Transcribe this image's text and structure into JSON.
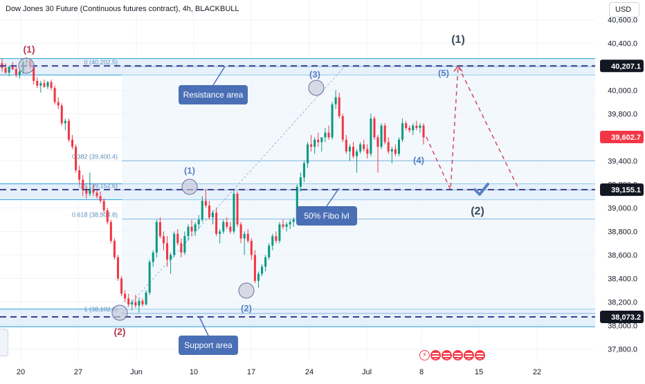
{
  "header": {
    "title": "Dow Jones 30 Future (Continuous futures contract), 4h, BLACKBULL",
    "currency_button": "USD"
  },
  "colors": {
    "up": "#089981",
    "down": "#f23645",
    "zone_fill": "#cfe4f7",
    "zone_line": "#2a9fd6",
    "dash_line": "#3b3d8c",
    "fib_line": "#7fb6de",
    "label_blue": "#5b7fc4",
    "wave_red": "#b83a50",
    "callout": "#4a6fb5",
    "price_tag": "#131722"
  },
  "chart_data": {
    "type": "candlestick",
    "title": "Dow Jones 30 Future (Continuous futures contract), 4h, BLACKBULL",
    "y_axis": {
      "ticks": [
        "40,600.0",
        "40,400.0",
        "40,200.0",
        "40,000.0",
        "39,800.0",
        "39,600.0",
        "39,400.0",
        "39,200.0",
        "39,000.0",
        "38,800.0",
        "38,600.0",
        "38,400.0",
        "38,200.0",
        "38,000.0",
        "37,800.0"
      ],
      "range": [
        37700,
        40680
      ]
    },
    "x_axis": {
      "ticks": [
        "20",
        "27",
        "Jun",
        "10",
        "17",
        "24",
        "Jul",
        "8",
        "15",
        "22"
      ]
    },
    "price_tags": [
      {
        "label": "40,207.1",
        "value": 40207.1,
        "style": "dark"
      },
      {
        "label": "39,602.7",
        "value": 39602.7,
        "style": "red"
      },
      {
        "label": "39,155.1",
        "value": 39155.1,
        "style": "dark"
      },
      {
        "label": "38,073.2",
        "value": 38073.2,
        "style": "dark"
      }
    ],
    "zones": [
      {
        "name": "Resistance area",
        "top": 40270,
        "bottom": 40130
      },
      {
        "name": "50% Fibo lvl",
        "top": 39205,
        "bottom": 39070
      },
      {
        "name": "Support area",
        "top": 38140,
        "bottom": 37990
      }
    ],
    "fib_levels": [
      {
        "label": "0 (40,202.5)",
        "value": 40202.5
      },
      {
        "label": "0.382 (39,400.4)",
        "value": 39400.4
      },
      {
        "label": "0.5 (39,152.6)",
        "value": 39152.6
      },
      {
        "label": "0.618 (38,904.8)",
        "value": 38904.8
      },
      {
        "label": "1 (38,102.6)",
        "value": 38102.6
      }
    ],
    "callouts": [
      "Resistance area",
      "50% Fibo lvl",
      "Support area"
    ],
    "wave_labels": [
      {
        "text": "(1)",
        "color": "red"
      },
      {
        "text": "(2)",
        "color": "red"
      },
      {
        "text": "(1)",
        "color": "blue"
      },
      {
        "text": "(2)",
        "color": "blue"
      },
      {
        "text": "(3)",
        "color": "blue"
      },
      {
        "text": "(4)",
        "color": "blue"
      },
      {
        "text": "(5)",
        "color": "blue"
      },
      {
        "text": "(1)",
        "color": "dark"
      },
      {
        "text": "(2)",
        "color": "dark"
      }
    ],
    "projection_path": [
      39602.7,
      39155,
      40207,
      39155
    ],
    "candles": [
      [
        40230,
        40270,
        40160,
        40190
      ],
      [
        40190,
        40230,
        40140,
        40150
      ],
      [
        40150,
        40210,
        40120,
        40200
      ],
      [
        40200,
        40240,
        40170,
        40180
      ],
      [
        40180,
        40200,
        40110,
        40130
      ],
      [
        40130,
        40170,
        40100,
        40160
      ],
      [
        40160,
        40260,
        40140,
        40240
      ],
      [
        40240,
        40280,
        40200,
        40250
      ],
      [
        40250,
        40270,
        40180,
        40200
      ],
      [
        40200,
        40220,
        40050,
        40080
      ],
      [
        40080,
        40110,
        40020,
        40040
      ],
      [
        40040,
        40080,
        39980,
        40060
      ],
      [
        40060,
        40090,
        40020,
        40030
      ],
      [
        40030,
        40080,
        40010,
        40070
      ],
      [
        40070,
        40090,
        40000,
        40020
      ],
      [
        40020,
        40040,
        39880,
        39900
      ],
      [
        39900,
        39940,
        39840,
        39870
      ],
      [
        39870,
        39890,
        39700,
        39720
      ],
      [
        39720,
        39760,
        39660,
        39740
      ],
      [
        39740,
        39760,
        39560,
        39580
      ],
      [
        39580,
        39620,
        39500,
        39520
      ],
      [
        39520,
        39540,
        39300,
        39320
      ],
      [
        39320,
        39360,
        39200,
        39240
      ],
      [
        39240,
        39280,
        39100,
        39150
      ],
      [
        39150,
        39180,
        39080,
        39120
      ],
      [
        39120,
        39300,
        39100,
        39160
      ],
      [
        39160,
        39200,
        39100,
        39130
      ],
      [
        39130,
        39160,
        39080,
        39100
      ],
      [
        39100,
        39140,
        39040,
        39060
      ],
      [
        39060,
        39080,
        38960,
        38980
      ],
      [
        38980,
        39000,
        38860,
        38880
      ],
      [
        38880,
        38900,
        38700,
        38720
      ],
      [
        38720,
        38740,
        38560,
        38580
      ],
      [
        38580,
        38600,
        38380,
        38400
      ],
      [
        38400,
        38420,
        38250,
        38270
      ],
      [
        38270,
        38300,
        38200,
        38230
      ],
      [
        38230,
        38270,
        38160,
        38180
      ],
      [
        38180,
        38220,
        38130,
        38200
      ],
      [
        38200,
        38260,
        38150,
        38170
      ],
      [
        38170,
        38240,
        38110,
        38210
      ],
      [
        38210,
        38230,
        38160,
        38180
      ],
      [
        38180,
        38300,
        38170,
        38280
      ],
      [
        38280,
        38560,
        38260,
        38540
      ],
      [
        38540,
        38640,
        38500,
        38620
      ],
      [
        38620,
        38900,
        38580,
        38880
      ],
      [
        38880,
        38920,
        38740,
        38760
      ],
      [
        38760,
        38800,
        38640,
        38700
      ],
      [
        38700,
        38760,
        38500,
        38560
      ],
      [
        38560,
        38620,
        38440,
        38600
      ],
      [
        38600,
        38800,
        38580,
        38780
      ],
      [
        38780,
        38820,
        38680,
        38700
      ],
      [
        38700,
        38740,
        38580,
        38620
      ],
      [
        38620,
        38800,
        38600,
        38760
      ],
      [
        38760,
        38860,
        38720,
        38840
      ],
      [
        38840,
        38900,
        38760,
        38800
      ],
      [
        38800,
        38880,
        38760,
        38860
      ],
      [
        38860,
        38940,
        38820,
        38900
      ],
      [
        38900,
        39100,
        38880,
        39060
      ],
      [
        39060,
        39160,
        39000,
        39020
      ],
      [
        39020,
        39060,
        38900,
        38920
      ],
      [
        38920,
        38980,
        38860,
        38960
      ],
      [
        38960,
        39000,
        38760,
        38780
      ],
      [
        38780,
        38820,
        38700,
        38800
      ],
      [
        38800,
        38900,
        38780,
        38880
      ],
      [
        38880,
        38920,
        38820,
        38840
      ],
      [
        38840,
        38880,
        38780,
        38800
      ],
      [
        38800,
        39160,
        38780,
        39120
      ],
      [
        39120,
        39140,
        38840,
        38860
      ],
      [
        38860,
        38880,
        38700,
        38740
      ],
      [
        38740,
        38800,
        38600,
        38780
      ],
      [
        38780,
        38820,
        38700,
        38720
      ],
      [
        38720,
        38740,
        38560,
        38600
      ],
      [
        38600,
        38640,
        38360,
        38380
      ],
      [
        38380,
        38460,
        38320,
        38440
      ],
      [
        38440,
        38520,
        38420,
        38500
      ],
      [
        38500,
        38600,
        38460,
        38580
      ],
      [
        38580,
        38700,
        38560,
        38680
      ],
      [
        38680,
        38780,
        38640,
        38760
      ],
      [
        38760,
        38800,
        38700,
        38720
      ],
      [
        38720,
        38880,
        38700,
        38860
      ],
      [
        38860,
        38900,
        38820,
        38840
      ],
      [
        38840,
        38880,
        38800,
        38860
      ],
      [
        38860,
        38900,
        38820,
        38880
      ],
      [
        38880,
        38920,
        38840,
        38900
      ],
      [
        38900,
        39200,
        38880,
        39180
      ],
      [
        39180,
        39300,
        39140,
        39260
      ],
      [
        39260,
        39400,
        39220,
        39380
      ],
      [
        39380,
        39560,
        39340,
        39540
      ],
      [
        39540,
        39620,
        39480,
        39520
      ],
      [
        39520,
        39600,
        39460,
        39580
      ],
      [
        39580,
        39640,
        39520,
        39560
      ],
      [
        39560,
        39600,
        39480,
        39600
      ],
      [
        39600,
        39680,
        39560,
        39640
      ],
      [
        39640,
        39700,
        39580,
        39600
      ],
      [
        39600,
        39900,
        39580,
        39880
      ],
      [
        39880,
        40000,
        39840,
        39940
      ],
      [
        39940,
        39980,
        39760,
        39780
      ],
      [
        39780,
        39800,
        39560,
        39580
      ],
      [
        39580,
        39620,
        39460,
        39480
      ],
      [
        39480,
        39540,
        39400,
        39520
      ],
      [
        39520,
        39560,
        39420,
        39440
      ],
      [
        39440,
        39500,
        39300,
        39480
      ],
      [
        39480,
        39560,
        39460,
        39540
      ],
      [
        39540,
        39580,
        39480,
        39500
      ],
      [
        39500,
        39540,
        39420,
        39460
      ],
      [
        39460,
        39800,
        39440,
        39760
      ],
      [
        39760,
        39780,
        39580,
        39600
      ],
      [
        39600,
        39620,
        39300,
        39520
      ],
      [
        39520,
        39720,
        39500,
        39700
      ],
      [
        39700,
        39720,
        39540,
        39560
      ],
      [
        39560,
        39600,
        39460,
        39480
      ],
      [
        39480,
        39520,
        39380,
        39500
      ],
      [
        39500,
        39540,
        39440,
        39460
      ],
      [
        39460,
        39600,
        39440,
        39580
      ],
      [
        39580,
        39760,
        39560,
        39720
      ],
      [
        39720,
        39740,
        39660,
        39680
      ],
      [
        39680,
        39700,
        39640,
        39660
      ],
      [
        39660,
        39720,
        39620,
        39700
      ],
      [
        39700,
        39740,
        39660,
        39680
      ],
      [
        39680,
        39720,
        39640,
        39700
      ],
      [
        39700,
        39720,
        39540,
        39600
      ]
    ]
  }
}
